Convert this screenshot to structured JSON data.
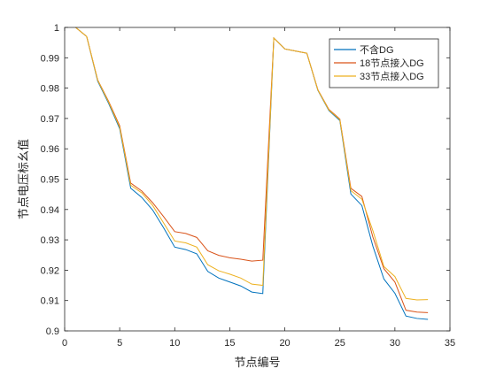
{
  "chart_data": {
    "type": "line",
    "title": "",
    "xlabel": "节点编号",
    "ylabel": "节点电压标幺值",
    "xlim": [
      0,
      35
    ],
    "ylim": [
      0.9,
      1.0
    ],
    "xticks": [
      "0",
      "5",
      "10",
      "15",
      "20",
      "25",
      "30",
      "35"
    ],
    "yticks": [
      "0.9",
      "0.91",
      "0.92",
      "0.93",
      "0.94",
      "0.95",
      "0.96",
      "0.97",
      "0.98",
      "0.99",
      "1"
    ],
    "grid": false,
    "legend_position": "top-right",
    "x": [
      1,
      2,
      3,
      4,
      5,
      6,
      7,
      8,
      9,
      10,
      11,
      12,
      13,
      14,
      15,
      16,
      17,
      18,
      19,
      20,
      21,
      22,
      23,
      24,
      25,
      26,
      27,
      28,
      29,
      30,
      31,
      32,
      33
    ],
    "series": [
      {
        "name": "不含DG",
        "color": "#0072BD",
        "values": [
          1.0,
          0.997,
          0.9823,
          0.9749,
          0.9666,
          0.947,
          0.944,
          0.9398,
          0.9339,
          0.9276,
          0.9268,
          0.9254,
          0.9196,
          0.9174,
          0.9161,
          0.9148,
          0.9128,
          0.9123,
          0.9965,
          0.9929,
          0.9922,
          0.9915,
          0.9793,
          0.9726,
          0.9693,
          0.9451,
          0.9413,
          0.9279,
          0.9171,
          0.9124,
          0.9049,
          0.9041,
          0.9038
        ]
      },
      {
        "name": "18节点接入DG",
        "color": "#D95319",
        "values": [
          1.0,
          0.997,
          0.9827,
          0.9756,
          0.9676,
          0.9487,
          0.9461,
          0.9422,
          0.9376,
          0.9327,
          0.9321,
          0.9308,
          0.9264,
          0.9249,
          0.9241,
          0.9236,
          0.923,
          0.9233,
          0.9965,
          0.9929,
          0.9922,
          0.9915,
          0.9795,
          0.973,
          0.9698,
          0.947,
          0.9443,
          0.9309,
          0.9205,
          0.9161,
          0.9068,
          0.9062,
          0.906
        ]
      },
      {
        "name": "33节点接入DG",
        "color": "#EDB120",
        "values": [
          1.0,
          0.997,
          0.9826,
          0.9753,
          0.9671,
          0.948,
          0.9455,
          0.9413,
          0.9355,
          0.9296,
          0.929,
          0.9276,
          0.9218,
          0.9198,
          0.9187,
          0.9174,
          0.9154,
          0.915,
          0.9965,
          0.9929,
          0.9922,
          0.9915,
          0.9794,
          0.9728,
          0.9696,
          0.9462,
          0.9434,
          0.933,
          0.9212,
          0.9179,
          0.9107,
          0.9102,
          0.9103
        ]
      }
    ]
  }
}
